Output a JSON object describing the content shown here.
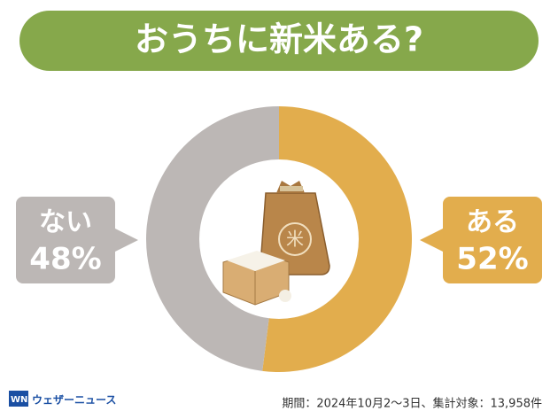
{
  "chart_data": {
    "type": "pie",
    "title": "おうちに新米ある?",
    "categories": [
      "ある",
      "ない"
    ],
    "values": [
      52,
      48
    ],
    "value_labels": [
      "52%",
      "48%"
    ],
    "colors": [
      "#e2ad4d",
      "#bcb7b5"
    ],
    "note": "期間：2024年10月2〜3日、集計対象：13,958件"
  },
  "logo": "ウェザーニュース"
}
